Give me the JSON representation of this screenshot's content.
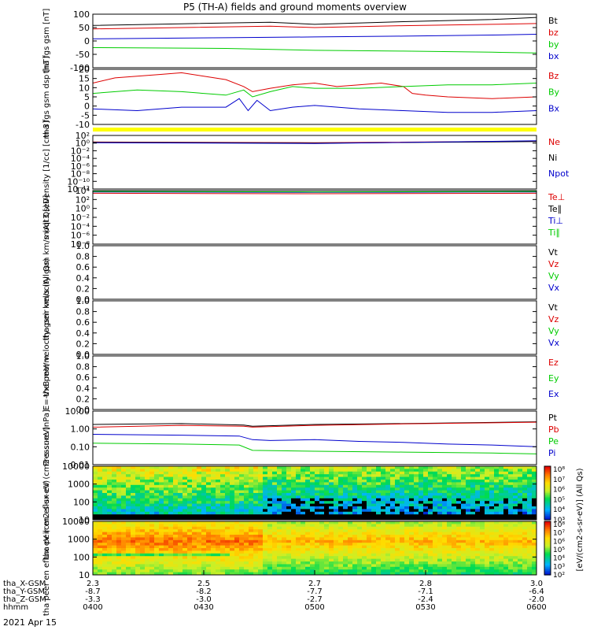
{
  "title": "P5 (TH-A) fields and ground moments overview",
  "footer": {
    "rows": [
      {
        "label": "tha_X-GSM",
        "values": [
          "2.3",
          "2.5",
          "2.7",
          "2.8",
          "3.0"
        ]
      },
      {
        "label": "tha_Y-GSM",
        "values": [
          "-8.7",
          "-8.2",
          "-7.7",
          "-7.1",
          "-6.4"
        ]
      },
      {
        "label": "tha_Z-GSM",
        "values": [
          "-3.3",
          "-3.0",
          "-2.7",
          "-2.4",
          "-2.0"
        ]
      },
      {
        "label": "hhmm",
        "values": [
          "0400",
          "0430",
          "0500",
          "0530",
          "0600"
        ]
      }
    ],
    "date": "2021 Apr 15"
  },
  "colorbar": {
    "label": "[eV/(cm2-s-sr-eV)] (All Qs)",
    "ticks_top": [
      "10⁸",
      "10⁷",
      "10⁶",
      "10⁵",
      "10⁴",
      "10³"
    ],
    "ticks_bottom": [
      "10⁸",
      "10⁷",
      "10⁶",
      "10⁵",
      "10⁴",
      "10³",
      "10²"
    ]
  },
  "colors": {
    "black": "#000000",
    "red": "#dd0000",
    "green": "#00cc00",
    "blue": "#0000cc",
    "yellow": "#ffff00"
  },
  "chart_data": [
    {
      "type": "line",
      "ylabel": "tha fgs gsm [nT]",
      "yticks": [
        "100",
        "50",
        "0",
        "-50",
        "-100"
      ],
      "ylim": [
        -100,
        100
      ],
      "legend": [
        "Bt",
        "bz",
        "by",
        "bx"
      ],
      "series": [
        {
          "name": "Bt",
          "color": "black",
          "x": [
            0,
            0.2,
            0.4,
            0.5,
            0.7,
            0.9,
            1.0
          ],
          "values": [
            58,
            64,
            70,
            62,
            72,
            80,
            88
          ]
        },
        {
          "name": "bz",
          "color": "red",
          "x": [
            0,
            0.2,
            0.4,
            0.5,
            0.7,
            0.9,
            1.0
          ],
          "values": [
            45,
            50,
            55,
            50,
            57,
            62,
            65
          ]
        },
        {
          "name": "by",
          "color": "green",
          "x": [
            0,
            0.3,
            0.5,
            0.7,
            0.9,
            1.0
          ],
          "values": [
            -25,
            -28,
            -35,
            -38,
            -42,
            -45
          ]
        },
        {
          "name": "bx",
          "color": "blue",
          "x": [
            0,
            0.3,
            0.5,
            0.7,
            0.9,
            1.0
          ],
          "values": [
            8,
            12,
            15,
            18,
            22,
            25
          ]
        }
      ]
    },
    {
      "type": "line",
      "ylabel": "tha fgs gsm dsp [nT]",
      "yticks": [
        "20",
        "15",
        "10",
        "5",
        "0",
        "-5",
        "-10"
      ],
      "ylim": [
        -12,
        20
      ],
      "legend": [
        "Bz",
        "By",
        "Bx"
      ],
      "series": [
        {
          "name": "Bz",
          "color": "red",
          "x": [
            0,
            0.05,
            0.1,
            0.15,
            0.2,
            0.25,
            0.3,
            0.34,
            0.36,
            0.4,
            0.45,
            0.5,
            0.55,
            0.6,
            0.65,
            0.7,
            0.72,
            0.75,
            0.8,
            0.9,
            1.0
          ],
          "values": [
            12,
            15,
            16,
            17,
            18,
            16,
            14,
            10,
            7,
            9,
            11,
            12,
            10,
            11,
            12,
            10,
            6,
            5,
            4,
            3,
            4
          ]
        },
        {
          "name": "By",
          "color": "green",
          "x": [
            0,
            0.1,
            0.2,
            0.3,
            0.34,
            0.36,
            0.4,
            0.45,
            0.5,
            0.6,
            0.7,
            0.8,
            0.9,
            1.0
          ],
          "values": [
            6,
            8,
            7,
            5,
            8,
            4,
            7,
            10,
            9,
            9,
            10,
            11,
            11,
            12
          ]
        },
        {
          "name": "Bx",
          "color": "blue",
          "x": [
            0,
            0.1,
            0.2,
            0.3,
            0.33,
            0.35,
            0.37,
            0.4,
            0.45,
            0.5,
            0.6,
            0.7,
            0.8,
            0.9,
            1.0
          ],
          "values": [
            -3,
            -4,
            -2,
            -2,
            3,
            -4,
            2,
            -4,
            -2,
            -1,
            -3,
            -4,
            -5,
            -5,
            -4
          ]
        }
      ]
    },
    {
      "type": "line",
      "ylabel": "Density [1/cc] [cm-3]",
      "yticks": [
        "10²",
        "10⁰",
        "10⁻²",
        "10⁻⁴",
        "10⁻⁶",
        "10⁻⁸",
        "10⁻¹⁰",
        "10⁻¹²"
      ],
      "ylim": [
        -12,
        2
      ],
      "log": true,
      "legend": [
        "Ne",
        "Ni",
        "Npot"
      ],
      "series": [
        {
          "name": "Ne",
          "color": "red",
          "x": [
            0,
            0.5,
            1.0
          ],
          "values": [
            0.3,
            0.1,
            0.5
          ]
        },
        {
          "name": "Ni",
          "color": "black",
          "x": [
            0,
            0.5,
            1.0
          ],
          "values": [
            0.2,
            0.0,
            0.4
          ]
        },
        {
          "name": "Npot",
          "color": "blue",
          "x": [
            0,
            0.5,
            1.0
          ],
          "values": [
            0.1,
            -0.1,
            0.6
          ]
        }
      ]
    },
    {
      "type": "line",
      "ylabel": "moqt3 [eV]",
      "yticks": [
        "10⁴",
        "10²",
        "10⁰",
        "10⁻²",
        "10⁻⁴",
        "10⁻⁶",
        "10⁻⁸"
      ],
      "ylim": [
        -8,
        4
      ],
      "log": true,
      "legend": [
        "Te⊥",
        "Te∥",
        "Ti⊥",
        "Ti∥"
      ],
      "series": [
        {
          "name": "Te⊥",
          "color": "red",
          "x": [
            0,
            0.5,
            1.0
          ],
          "values": [
            3.4,
            3.3,
            3.4
          ]
        },
        {
          "name": "Ti⊥",
          "color": "blue",
          "x": [
            0,
            0.5,
            1.0
          ],
          "values": [
            3.7,
            3.6,
            3.7
          ]
        },
        {
          "name": "Ti∥",
          "color": "green",
          "x": [
            0,
            0.5,
            1.0
          ],
          "values": [
            3.8,
            3.7,
            3.8
          ]
        }
      ]
    },
    {
      "type": "line",
      "ylabel": "tha peir velocity gsm km/s (All Qs)",
      "yticks": [
        "1.0",
        "0.8",
        "0.6",
        "0.4",
        "0.2",
        "0.0"
      ],
      "ylim": [
        0,
        1
      ],
      "legend": [
        "Vt",
        "Vz",
        "Vy",
        "Vx"
      ],
      "series": []
    },
    {
      "type": "line",
      "ylabel": "tha peer velocity gsm km/s (All Qs)",
      "yticks": [
        "1.0",
        "0.8",
        "0.6",
        "0.4",
        "0.2",
        "0.0"
      ],
      "ylim": [
        0,
        1
      ],
      "legend": [
        "Vt",
        "Vz",
        "Vy",
        "Vx"
      ],
      "series": []
    },
    {
      "type": "line",
      "ylabel": "E=-VxB mV/m",
      "yticks": [
        "1.0",
        "0.8",
        "0.6",
        "0.4",
        "0.2",
        "0.0"
      ],
      "ylim": [
        0,
        1
      ],
      "legend": [
        "Ez",
        "Ey",
        "Ex"
      ],
      "series": []
    },
    {
      "type": "line",
      "ylabel": "Pressure [nPa]",
      "yticks": [
        "10.00",
        "1.00",
        "0.10",
        "0.01"
      ],
      "ylim": [
        -2,
        1
      ],
      "log": true,
      "legend": [
        "Pt",
        "Pb",
        "Pe",
        "Pi"
      ],
      "series": [
        {
          "name": "Pt",
          "color": "black",
          "x": [
            0,
            0.2,
            0.34,
            0.36,
            0.5,
            0.7,
            1.0
          ],
          "values": [
            0.25,
            0.3,
            0.22,
            0.15,
            0.25,
            0.3,
            0.4
          ]
        },
        {
          "name": "Pb",
          "color": "red",
          "x": [
            0,
            0.2,
            0.34,
            0.36,
            0.5,
            0.7,
            1.0
          ],
          "values": [
            0.1,
            0.2,
            0.15,
            0.1,
            0.2,
            0.28,
            0.38
          ]
        },
        {
          "name": "Pi",
          "color": "blue",
          "x": [
            0,
            0.2,
            0.33,
            0.36,
            0.4,
            0.5,
            0.6,
            0.7,
            0.8,
            0.9,
            1.0
          ],
          "values": [
            -0.3,
            -0.35,
            -0.4,
            -0.6,
            -0.65,
            -0.6,
            -0.7,
            -0.75,
            -0.85,
            -0.9,
            -1.0
          ]
        },
        {
          "name": "Pe",
          "color": "green",
          "x": [
            0,
            0.2,
            0.33,
            0.36,
            0.5,
            0.7,
            0.9,
            1.0
          ],
          "values": [
            -0.8,
            -0.85,
            -0.9,
            -1.2,
            -1.25,
            -1.3,
            -1.35,
            -1.4
          ]
        }
      ]
    },
    {
      "type": "heatmap",
      "ylabel": "tha peir en eflux eV (cm2-s-sr-eV)",
      "yticks": [
        "10000",
        "1000",
        "100",
        "10"
      ],
      "ylim": [
        1,
        4.2
      ],
      "log": true,
      "colorbar_range": [
        "10³",
        "10⁸"
      ]
    },
    {
      "type": "heatmap",
      "ylabel": "tha peer en eflux eV (cm2-s-sr-eV)",
      "yticks": [
        "10000",
        "1000",
        "100",
        "10"
      ],
      "ylim": [
        0.8,
        4.3
      ],
      "log": true,
      "colorbar_range": [
        "10²",
        "10⁸"
      ]
    }
  ]
}
